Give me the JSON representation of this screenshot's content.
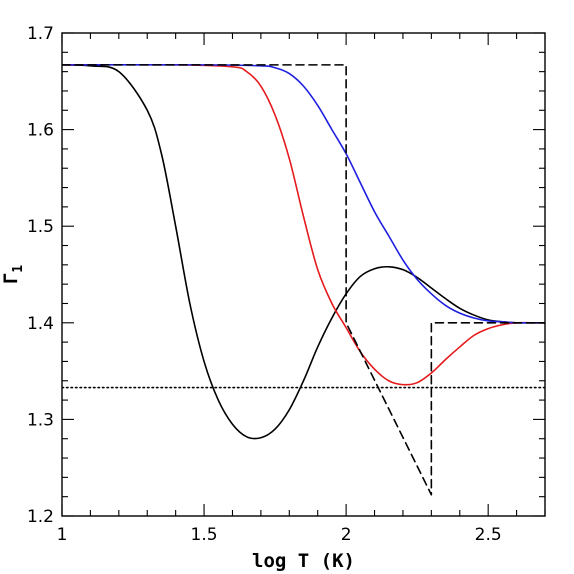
{
  "chart_data": {
    "type": "line",
    "xlabel": "log T (K)",
    "ylabel_main": "Γ",
    "ylabel_sub": "1",
    "xlim": [
      1.0,
      2.7
    ],
    "ylim": [
      1.2,
      1.7
    ],
    "xticks": [
      1.0,
      1.5,
      2.0,
      2.5
    ],
    "xtick_labels": [
      "1",
      "1.5",
      "2",
      "2.5"
    ],
    "yticks": [
      1.2,
      1.3,
      1.4,
      1.5,
      1.6,
      1.7
    ],
    "ytick_labels": [
      "1.2",
      "1.3",
      "1.4",
      "1.5",
      "1.6",
      "1.7"
    ],
    "x_minor_step": 0.1,
    "y_minor_step": 0.02,
    "grid": false,
    "series": [
      {
        "color": "#000000",
        "dash": "solid",
        "x": [
          1.0,
          1.1,
          1.2,
          1.3,
          1.35,
          1.4,
          1.45,
          1.5,
          1.55,
          1.6,
          1.65,
          1.7,
          1.75,
          1.8,
          1.85,
          1.9,
          1.95,
          2.0,
          2.05,
          2.1,
          2.15,
          2.2,
          2.25,
          2.3,
          2.35,
          2.4,
          2.45,
          2.5,
          2.55,
          2.6,
          2.65,
          2.7
        ],
        "y": [
          1.667,
          1.666,
          1.66,
          1.62,
          1.575,
          1.5,
          1.42,
          1.36,
          1.32,
          1.295,
          1.282,
          1.281,
          1.29,
          1.31,
          1.34,
          1.375,
          1.405,
          1.43,
          1.448,
          1.456,
          1.458,
          1.455,
          1.447,
          1.436,
          1.425,
          1.415,
          1.408,
          1.403,
          1.401,
          1.4,
          1.4,
          1.4
        ]
      },
      {
        "color": "#e41a1c",
        "dash": "solid",
        "x": [
          1.0,
          1.4,
          1.6,
          1.65,
          1.7,
          1.75,
          1.8,
          1.85,
          1.9,
          1.95,
          2.0,
          2.05,
          2.1,
          2.15,
          2.2,
          2.25,
          2.3,
          2.35,
          2.4,
          2.45,
          2.5,
          2.55,
          2.6,
          2.65,
          2.7
        ],
        "y": [
          1.667,
          1.667,
          1.665,
          1.66,
          1.645,
          1.615,
          1.57,
          1.51,
          1.455,
          1.42,
          1.395,
          1.37,
          1.352,
          1.34,
          1.336,
          1.338,
          1.348,
          1.362,
          1.375,
          1.387,
          1.394,
          1.398,
          1.4,
          1.4,
          1.4
        ]
      },
      {
        "color": "#1f1fe0",
        "dash": "solid",
        "x": [
          1.0,
          1.5,
          1.7,
          1.75,
          1.8,
          1.85,
          1.9,
          1.95,
          2.0,
          2.05,
          2.1,
          2.15,
          2.2,
          2.25,
          2.3,
          2.35,
          2.4,
          2.45,
          2.5,
          2.55,
          2.6,
          2.65,
          2.7
        ],
        "y": [
          1.667,
          1.667,
          1.666,
          1.664,
          1.658,
          1.645,
          1.625,
          1.6,
          1.575,
          1.545,
          1.515,
          1.49,
          1.465,
          1.445,
          1.43,
          1.418,
          1.41,
          1.405,
          1.402,
          1.401,
          1.4,
          1.4,
          1.4
        ]
      },
      {
        "color": "#000000",
        "dash": "dashed",
        "x": [
          1.0,
          2.0,
          2.0,
          2.3,
          2.3,
          2.7
        ],
        "y": [
          1.667,
          1.667,
          1.4,
          1.222,
          1.4,
          1.4
        ]
      },
      {
        "color": "#000000",
        "dash": "dotted",
        "x": [
          1.0,
          2.7
        ],
        "y": [
          1.333,
          1.333
        ]
      }
    ]
  }
}
